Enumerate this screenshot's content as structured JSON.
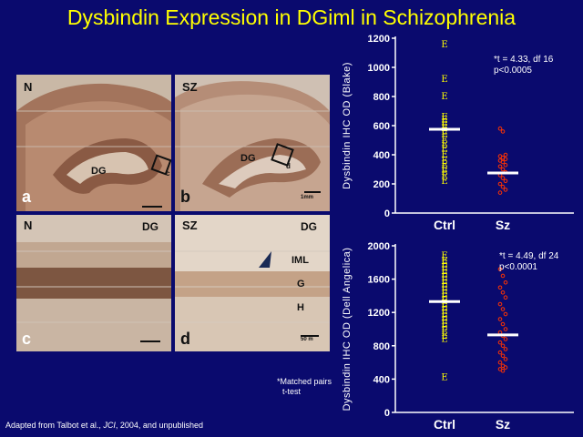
{
  "title": "Dysbindin Expression in DGiml in Schizophrenia",
  "micrographs": {
    "a": {
      "corner_label": "N",
      "region_label": "DG",
      "box_label": "c",
      "panel_label": "a"
    },
    "b": {
      "corner_label": "SZ",
      "region_label": "DG",
      "box_label": "d",
      "panel_label": "b",
      "scale": "1mm"
    },
    "c": {
      "corner_label": "N",
      "region_label": "DG",
      "panel_label": "c"
    },
    "d": {
      "corner_label": "SZ",
      "region_label": "DG",
      "layer_labels": [
        "IML",
        "G",
        "H"
      ],
      "panel_label": "d",
      "scale": "50 m"
    }
  },
  "chart_data": [
    {
      "type": "scatter",
      "ylabel": "Dysbindin IHC OD (Blake)",
      "categories": [
        "Ctrl",
        "Sz"
      ],
      "ylim": [
        0,
        1200
      ],
      "yticks": [
        0,
        200,
        400,
        600,
        800,
        1000,
        1200
      ],
      "annotation": [
        "*t = 4.33, df 16",
        "p<0.0005"
      ],
      "series": [
        {
          "category": "Ctrl",
          "marker": "E",
          "color": "#ffff00",
          "values": [
            1155,
            920,
            800,
            660,
            640,
            620,
            600,
            580,
            560,
            540,
            500,
            470,
            440,
            400,
            360,
            330,
            300,
            280,
            250,
            220
          ],
          "mean": 575
        },
        {
          "category": "Sz",
          "marker": "o",
          "color": "#ff3300",
          "values": [
            580,
            560,
            400,
            390,
            380,
            370,
            360,
            350,
            330,
            320,
            300,
            280,
            260,
            240,
            220,
            200,
            180,
            160,
            140
          ],
          "mean": 275
        }
      ]
    },
    {
      "type": "scatter",
      "ylabel": "Dysbindin IHC OD (Dell Angelica)",
      "categories": [
        "Ctrl",
        "Sz"
      ],
      "ylim": [
        0,
        2000
      ],
      "yticks": [
        0,
        400,
        800,
        1200,
        1600,
        2000
      ],
      "annotation": [
        "*t = 4.49, df 24",
        "p<0.0001"
      ],
      "series": [
        {
          "category": "Ctrl",
          "marker": "E",
          "color": "#ffff00",
          "values": [
            1880,
            1820,
            1780,
            1740,
            1700,
            1660,
            1620,
            1580,
            1540,
            1500,
            1460,
            1420,
            1380,
            1340,
            1300,
            1260,
            1220,
            1180,
            1140,
            1100,
            1060,
            1020,
            980,
            920,
            880,
            420
          ],
          "mean": 1330
        },
        {
          "category": "Sz",
          "marker": "o",
          "color": "#ff3300",
          "values": [
            1720,
            1640,
            1560,
            1500,
            1440,
            1380,
            1300,
            1240,
            1180,
            1120,
            1060,
            1000,
            960,
            920,
            880,
            840,
            800,
            760,
            720,
            680,
            640,
            600,
            560,
            540,
            520,
            500
          ],
          "mean": 930
        }
      ]
    }
  ],
  "footnote": [
    "*Matched pairs",
    "t-test"
  ],
  "citation": {
    "prefix": "Adapted from Talbot et al., ",
    "journal": "JCI",
    "suffix": ", 2004, and unpublished"
  }
}
